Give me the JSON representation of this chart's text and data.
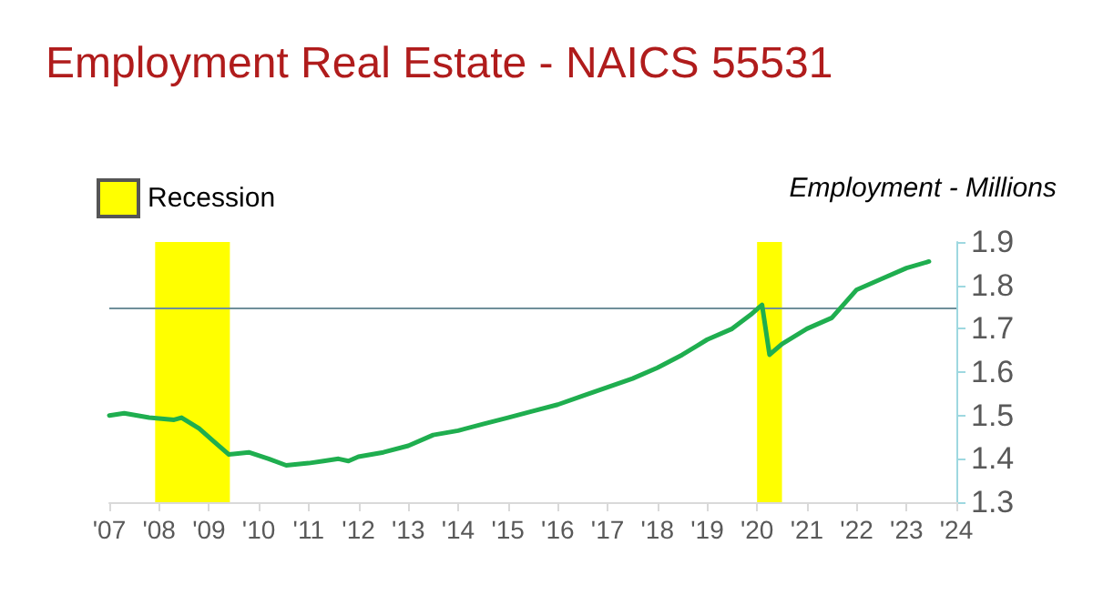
{
  "chart_data": {
    "type": "line",
    "title": "Employment Real Estate - NAICS 55531",
    "ylabel": "Employment - Millions",
    "x": [
      2007.0,
      2007.3,
      2007.8,
      2008.3,
      2008.45,
      2008.8,
      2009.1,
      2009.4,
      2009.8,
      2010.2,
      2010.55,
      2011.0,
      2011.3,
      2011.6,
      2011.8,
      2012.0,
      2012.5,
      2013.0,
      2013.5,
      2014.0,
      2014.5,
      2015.0,
      2015.5,
      2016.0,
      2016.5,
      2017.0,
      2017.5,
      2018.0,
      2018.5,
      2019.0,
      2019.5,
      2019.9,
      2020.1,
      2020.25,
      2020.5,
      2021.0,
      2021.5,
      2022.0,
      2022.5,
      2023.0,
      2023.45
    ],
    "series": [
      {
        "color": "#1fae4f",
        "values": [
          1.5,
          1.505,
          1.495,
          1.49,
          1.495,
          1.47,
          1.44,
          1.41,
          1.415,
          1.4,
          1.385,
          1.39,
          1.395,
          1.4,
          1.395,
          1.405,
          1.415,
          1.43,
          1.455,
          1.465,
          1.48,
          1.495,
          1.51,
          1.525,
          1.545,
          1.565,
          1.585,
          1.61,
          1.64,
          1.675,
          1.7,
          1.735,
          1.755,
          1.64,
          1.665,
          1.7,
          1.725,
          1.79,
          1.815,
          1.84,
          1.855
        ]
      }
    ],
    "xlim": [
      2007,
      2024
    ],
    "xticks": [
      {
        "value": 2007,
        "label": "'07"
      },
      {
        "value": 2008,
        "label": "'08"
      },
      {
        "value": 2009,
        "label": "'09"
      },
      {
        "value": 2010,
        "label": "'10"
      },
      {
        "value": 2011,
        "label": "'11"
      },
      {
        "value": 2012,
        "label": "'12"
      },
      {
        "value": 2013,
        "label": "'13"
      },
      {
        "value": 2014,
        "label": "'14"
      },
      {
        "value": 2015,
        "label": "'15"
      },
      {
        "value": 2016,
        "label": "'16"
      },
      {
        "value": 2017,
        "label": "'17"
      },
      {
        "value": 2018,
        "label": "'18"
      },
      {
        "value": 2019,
        "label": "'19"
      },
      {
        "value": 2020,
        "label": "'20"
      },
      {
        "value": 2021,
        "label": "'21"
      },
      {
        "value": 2022,
        "label": "'22"
      },
      {
        "value": 2023,
        "label": "'23"
      },
      {
        "value": 2024,
        "label": "'24"
      }
    ],
    "ylim": [
      1.3,
      1.9
    ],
    "yticks": [
      1.3,
      1.4,
      1.5,
      1.6,
      1.7,
      1.8,
      1.9
    ],
    "ref_lines": [
      {
        "axis": "y",
        "value": 1.75,
        "color": "#6f8f9a"
      }
    ],
    "bands": [
      {
        "axis": "x",
        "from": 2007.92,
        "to": 2009.42,
        "label": "Recession",
        "color": "#ffff00"
      },
      {
        "axis": "x",
        "from": 2020.0,
        "to": 2020.5,
        "color": "#ffff00"
      }
    ],
    "grid": false,
    "legend": "top left",
    "marker": "none",
    "line_style": "solid"
  }
}
